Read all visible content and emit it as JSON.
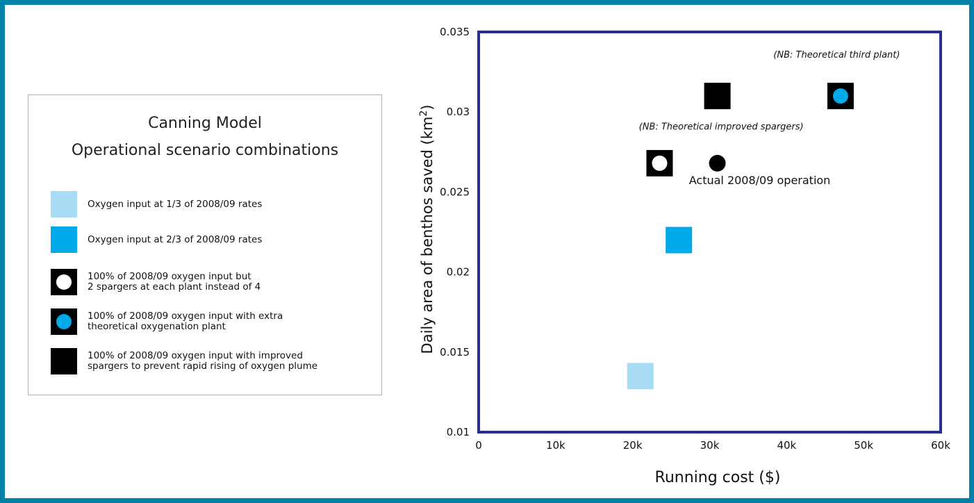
{
  "legend": {
    "title_line1": "Canning Model",
    "title_line2": "Operational scenario combinations",
    "items": [
      {
        "label": "Oxygen input at 1/3 of 2008/09 rates",
        "symbol": "light-blue-square",
        "color": "#a8dcf5"
      },
      {
        "label": "Oxygen input at 2/3 of 2008/09 rates",
        "symbol": "blue-square",
        "color": "#00a9e8"
      },
      {
        "label": "100% of 2008/09 oxygen input but\n2 spargers at each plant instead of 4",
        "symbol": "black-square-white-dot",
        "color": "#000000"
      },
      {
        "label": "100% of 2008/09 oxygen input with extra\ntheoretical oxygenation plant",
        "symbol": "black-square-blue-dot",
        "color": "#000000"
      },
      {
        "label": "100% of 2008/09 oxygen input with improved\nspargers to prevent rapid rising of oxygen plume",
        "symbol": "black-square",
        "color": "#000000"
      }
    ]
  },
  "chart_data": {
    "type": "scatter",
    "xlabel": "Running cost ($)",
    "ylabel": "Daily area of benthos saved (km",
    "ylabel_sup": "2",
    "ylabel_end": ")",
    "xlim": [
      0,
      60000
    ],
    "ylim": [
      0.01,
      0.035
    ],
    "x_ticks": [
      0,
      10000,
      20000,
      30000,
      40000,
      50000,
      60000
    ],
    "x_tick_labels": [
      "0",
      "10k",
      "20k",
      "30k",
      "40k",
      "50k",
      "60k"
    ],
    "y_ticks": [
      0.01,
      0.015,
      0.02,
      0.025,
      0.03,
      0.035
    ],
    "y_tick_labels": [
      "0.01",
      "0.015",
      "0.02",
      "0.025",
      "0.03",
      "0.035"
    ],
    "frame_color": "#2a2f8f",
    "points": [
      {
        "symbol": "light-blue-square",
        "x": 21000,
        "y": 0.0135
      },
      {
        "symbol": "blue-square",
        "x": 26000,
        "y": 0.022
      },
      {
        "symbol": "black-square-white-dot",
        "x": 23500,
        "y": 0.0268
      },
      {
        "symbol": "black-circle",
        "x": 31000,
        "y": 0.0268
      },
      {
        "symbol": "black-square",
        "x": 31000,
        "y": 0.031
      },
      {
        "symbol": "black-square-blue-dot",
        "x": 47000,
        "y": 0.031
      }
    ],
    "annotations": [
      {
        "text": "(NB:  Theoretical third plant)",
        "x": 46500,
        "y": 0.0334,
        "italic": true,
        "anchor": "middle"
      },
      {
        "text": "(NB:  Theoretical improved spargers)",
        "x": 31500,
        "y": 0.0289,
        "italic": true,
        "anchor": "middle"
      },
      {
        "text": "Actual 2008/09 operation",
        "x": 36500,
        "y": 0.0255,
        "italic": false,
        "anchor": "middle"
      }
    ]
  }
}
